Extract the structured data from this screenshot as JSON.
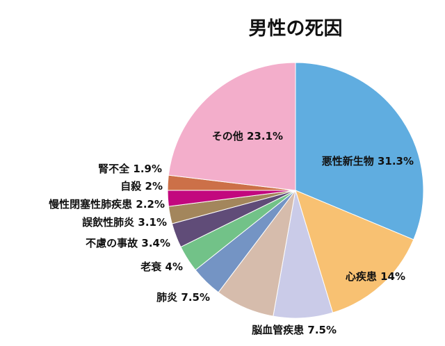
{
  "chart_data": {
    "type": "pie",
    "title": "男性の死因",
    "start_angle_deg": 0,
    "direction": "clockwise",
    "slices": [
      {
        "label": "悪性新生物",
        "value": 31.3,
        "value_text": "31.3%",
        "color": "#60ade0"
      },
      {
        "label": "心疾患",
        "value": 14,
        "value_text": "14%",
        "color": "#f8c172"
      },
      {
        "label": "脳血管疾患",
        "value": 7.5,
        "value_text": "7.5%",
        "color": "#cacbe8"
      },
      {
        "label": "肺炎",
        "value": 7.5,
        "value_text": "7.5%",
        "color": "#d6bcac"
      },
      {
        "label": "老衰",
        "value": 4,
        "value_text": "4%",
        "color": "#7494c4"
      },
      {
        "label": "不慮の事故",
        "value": 3.4,
        "value_text": "3.4%",
        "color": "#72c288"
      },
      {
        "label": "誤飲性肺炎",
        "value": 3.1,
        "value_text": "3.1%",
        "color": "#604c78"
      },
      {
        "label": "慢性閉塞性肺疾患",
        "value": 2.2,
        "value_text": "2.2%",
        "color": "#a3865c"
      },
      {
        "label": "自殺",
        "value": 2,
        "value_text": "2%",
        "color": "#c2087e"
      },
      {
        "label": "腎不全",
        "value": 1.9,
        "value_text": "1.9%",
        "color": "#cc7048"
      },
      {
        "label": "その他",
        "value": 23.1,
        "value_text": "23.1%",
        "color": "#f3aecb"
      }
    ]
  }
}
